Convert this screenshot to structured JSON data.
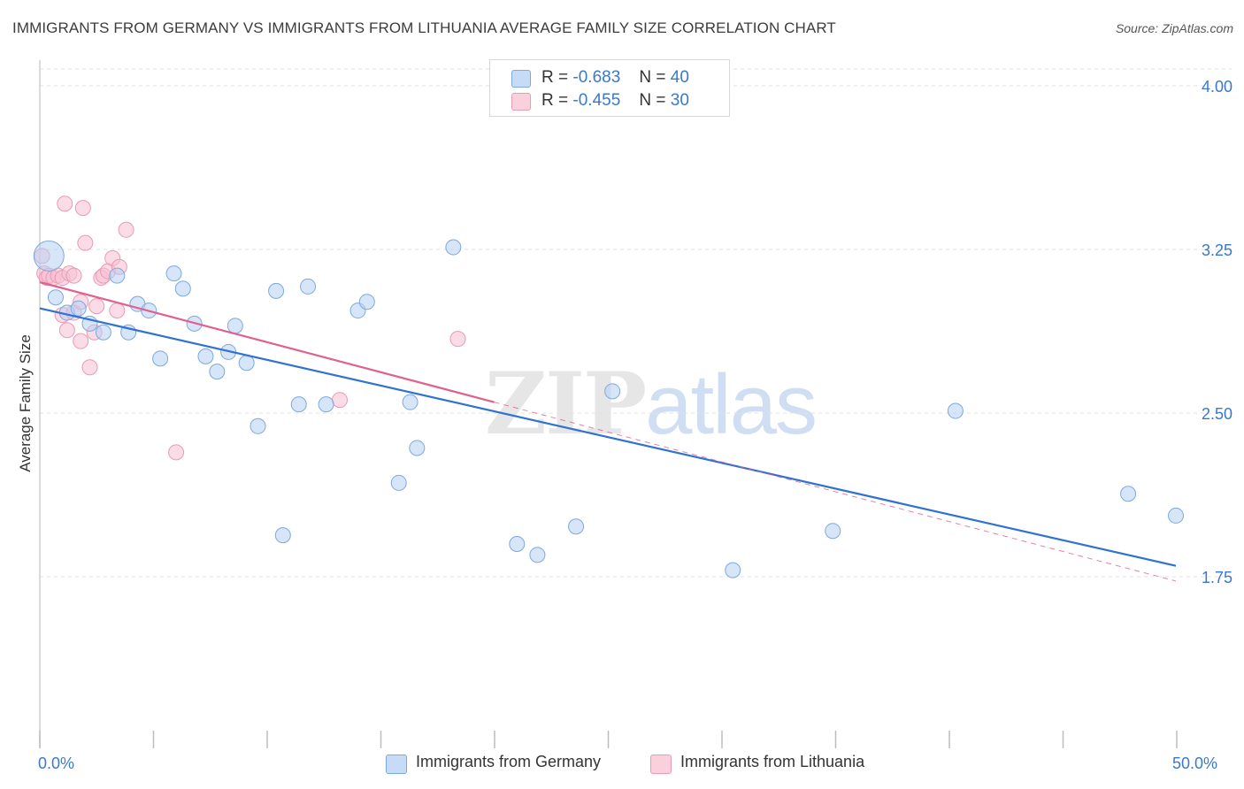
{
  "title": "IMMIGRANTS FROM GERMANY VS IMMIGRANTS FROM LITHUANIA AVERAGE FAMILY SIZE CORRELATION CHART",
  "source": "Source: ZipAtlas.com",
  "watermark": {
    "zip": "ZIP",
    "atlas": "atlas"
  },
  "colors": {
    "germany_fill": "#b6cff2",
    "germany_stroke": "#7ea8de",
    "germany_line": "#2f72d0",
    "lithuania_fill": "#f8c0d2",
    "lithuania_stroke": "#e99ab4",
    "lithuania_line": "#e0608e",
    "axis_text": "#3a78cc",
    "grid": "#e2e2e2"
  },
  "stats": [
    {
      "r_label": "R =",
      "r_value": "-0.683",
      "n_label": "N =",
      "n_value": "40"
    },
    {
      "r_label": "R =",
      "r_value": "-0.455",
      "n_label": "N =",
      "n_value": "30"
    }
  ],
  "legend": {
    "germany": "Immigrants from Germany",
    "lithuania": "Immigrants from Lithuania"
  },
  "x_axis": {
    "min_label": "0.0%",
    "max_label": "50.0%"
  },
  "chart_data": {
    "type": "scatter",
    "title": "IMMIGRANTS FROM GERMANY VS IMMIGRANTS FROM LITHUANIA AVERAGE FAMILY SIZE CORRELATION CHART",
    "xlabel": "",
    "ylabel": "Average Family Size",
    "xlim": [
      0,
      50
    ],
    "ylim": [
      1.0,
      4.1
    ],
    "y_ticks": [
      4.0,
      3.25,
      2.5,
      1.75
    ],
    "y_tick_labels": [
      "4.00",
      "3.25",
      "2.50",
      "1.75"
    ],
    "grid": true,
    "series": [
      {
        "name": "Immigrants from Germany",
        "R": -0.683,
        "N": 40,
        "trend": {
          "x": [
            0.0,
            50.0
          ],
          "y": [
            2.98,
            1.8
          ]
        },
        "points": [
          {
            "x": 0.4,
            "y": 3.22,
            "big": true
          },
          {
            "x": 0.7,
            "y": 3.03
          },
          {
            "x": 1.2,
            "y": 2.96
          },
          {
            "x": 1.7,
            "y": 2.98
          },
          {
            "x": 2.2,
            "y": 2.91
          },
          {
            "x": 2.8,
            "y": 2.87
          },
          {
            "x": 3.4,
            "y": 3.13
          },
          {
            "x": 3.9,
            "y": 2.87
          },
          {
            "x": 4.3,
            "y": 3.0
          },
          {
            "x": 4.8,
            "y": 2.97
          },
          {
            "x": 5.3,
            "y": 2.75
          },
          {
            "x": 5.9,
            "y": 3.14
          },
          {
            "x": 6.3,
            "y": 3.07
          },
          {
            "x": 6.8,
            "y": 2.91
          },
          {
            "x": 7.3,
            "y": 2.76
          },
          {
            "x": 7.8,
            "y": 2.69
          },
          {
            "x": 8.3,
            "y": 2.78
          },
          {
            "x": 8.6,
            "y": 2.9
          },
          {
            "x": 9.1,
            "y": 2.73
          },
          {
            "x": 9.6,
            "y": 2.44
          },
          {
            "x": 10.4,
            "y": 3.06
          },
          {
            "x": 10.7,
            "y": 1.94
          },
          {
            "x": 11.4,
            "y": 2.54
          },
          {
            "x": 11.8,
            "y": 3.08
          },
          {
            "x": 12.6,
            "y": 2.54
          },
          {
            "x": 14.0,
            "y": 2.97
          },
          {
            "x": 14.4,
            "y": 3.01
          },
          {
            "x": 15.8,
            "y": 2.18
          },
          {
            "x": 16.3,
            "y": 2.55
          },
          {
            "x": 16.6,
            "y": 2.34
          },
          {
            "x": 18.2,
            "y": 3.26
          },
          {
            "x": 21.0,
            "y": 1.9
          },
          {
            "x": 21.9,
            "y": 1.85
          },
          {
            "x": 23.6,
            "y": 1.98
          },
          {
            "x": 25.2,
            "y": 2.6
          },
          {
            "x": 30.5,
            "y": 1.78
          },
          {
            "x": 34.9,
            "y": 1.96
          },
          {
            "x": 40.3,
            "y": 2.51
          },
          {
            "x": 47.9,
            "y": 2.13
          },
          {
            "x": 50.0,
            "y": 2.03
          }
        ]
      },
      {
        "name": "Immigrants from Lithuania",
        "R": -0.455,
        "N": 30,
        "trend": {
          "x": [
            0.0,
            20.0
          ],
          "y": [
            3.1,
            2.55
          ]
        },
        "trend_extension": {
          "x": [
            20.0,
            50.0
          ],
          "y": [
            2.55,
            1.73
          ]
        },
        "points": [
          {
            "x": 0.1,
            "y": 3.22
          },
          {
            "x": 0.2,
            "y": 3.14
          },
          {
            "x": 0.3,
            "y": 3.12
          },
          {
            "x": 0.4,
            "y": 3.13
          },
          {
            "x": 0.6,
            "y": 3.12
          },
          {
            "x": 0.8,
            "y": 3.13
          },
          {
            "x": 1.0,
            "y": 3.12
          },
          {
            "x": 1.3,
            "y": 3.14
          },
          {
            "x": 1.5,
            "y": 3.13
          },
          {
            "x": 1.0,
            "y": 2.95
          },
          {
            "x": 1.2,
            "y": 2.88
          },
          {
            "x": 1.5,
            "y": 2.96
          },
          {
            "x": 1.8,
            "y": 3.01
          },
          {
            "x": 1.8,
            "y": 2.83
          },
          {
            "x": 1.1,
            "y": 3.46
          },
          {
            "x": 1.9,
            "y": 3.44
          },
          {
            "x": 2.0,
            "y": 3.28
          },
          {
            "x": 2.2,
            "y": 2.71
          },
          {
            "x": 2.4,
            "y": 2.87
          },
          {
            "x": 2.5,
            "y": 2.99
          },
          {
            "x": 2.7,
            "y": 3.12
          },
          {
            "x": 2.8,
            "y": 3.13
          },
          {
            "x": 3.0,
            "y": 3.15
          },
          {
            "x": 3.2,
            "y": 3.21
          },
          {
            "x": 3.4,
            "y": 2.97
          },
          {
            "x": 3.5,
            "y": 3.17
          },
          {
            "x": 3.8,
            "y": 3.34
          },
          {
            "x": 6.0,
            "y": 2.32
          },
          {
            "x": 13.2,
            "y": 2.56
          },
          {
            "x": 18.4,
            "y": 2.84
          }
        ]
      }
    ]
  }
}
